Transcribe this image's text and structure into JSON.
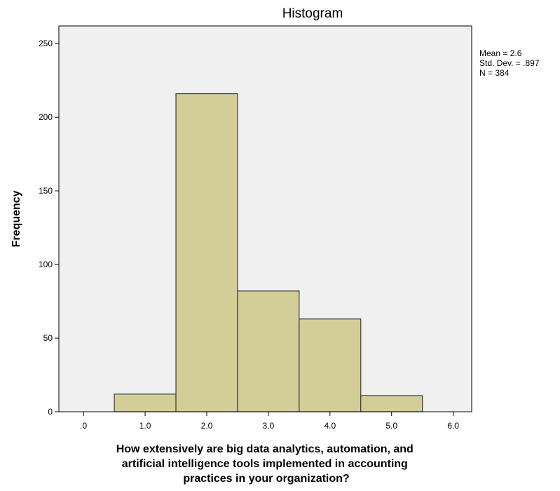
{
  "chart_data": {
    "type": "bar",
    "title": "Histogram",
    "xlabel_lines": [
      "How extensively are big data analytics, automation, and",
      "artificial intelligence tools implemented in accounting",
      "practices in your organization?"
    ],
    "ylabel": "Frequency",
    "xlim": [
      -0.4,
      6.3
    ],
    "ylim": [
      0,
      262
    ],
    "x_ticks": [
      0,
      1,
      2,
      3,
      4,
      5,
      6
    ],
    "x_tick_labels": [
      ".0",
      "1.0",
      "2.0",
      "3.0",
      "4.0",
      "5.0",
      "6.0"
    ],
    "y_ticks": [
      0,
      50,
      100,
      150,
      200,
      250
    ],
    "y_tick_labels": [
      "0",
      "50",
      "100",
      "150",
      "200",
      "250"
    ],
    "bin_width": 1,
    "bins": [
      {
        "center": 1,
        "value": 12
      },
      {
        "center": 2,
        "value": 216
      },
      {
        "center": 3,
        "value": 82
      },
      {
        "center": 4,
        "value": 63
      },
      {
        "center": 5,
        "value": 11
      }
    ],
    "stats": [
      "Mean = 2.6",
      "Std. Dev. = .897",
      "N = 384"
    ],
    "grid": false,
    "colors": {
      "plot_background": "#f0f0f0",
      "bar_fill": "#d3ce97",
      "bar_stroke": "#3c3c3c",
      "frame": "#000000"
    }
  }
}
